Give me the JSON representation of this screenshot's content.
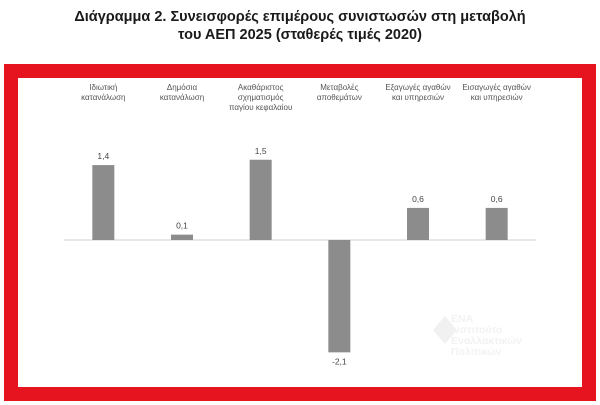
{
  "title_line1": "Διάγραμμα 2. Συνεισφορές επιμέρους συνιστωσών στη μεταβολή",
  "title_line2": "του ΑΕΠ 2025 (σταθερές τιμές 2020)",
  "watermark": {
    "line1": "ΕΝΑ",
    "line2": "Ινστιτούτο",
    "line3": "Εναλλακτικών",
    "line4": "Πολιτικών"
  },
  "colors": {
    "bar": "#8c8c8c",
    "frame": "#e5141e",
    "axis": "#d0d0d0"
  },
  "chart_data": {
    "type": "bar",
    "categories": [
      [
        "Ιδιωτική",
        "κατανάλωση"
      ],
      [
        "Δημόσια",
        "κατανάλωση"
      ],
      [
        "Ακαθάριστος",
        "σχηματισμός",
        "παγίου κεφαλαίου"
      ],
      [
        "Μεταβολές",
        "αποθεμάτων"
      ],
      [
        "Εξαγωγές αγαθών",
        "και υπηρεσιών"
      ],
      [
        "Εισαγωγές αγαθών",
        "και υπηρεσιών"
      ]
    ],
    "values": [
      1.4,
      0.1,
      1.5,
      -2.1,
      0.6,
      0.6
    ],
    "data_labels": [
      "1,4",
      "0,1",
      "1,5",
      "-2,1",
      "0,6",
      "0,6"
    ],
    "title": "",
    "xlabel": "",
    "ylabel": "",
    "ylim": [
      -2.1,
      1.5
    ],
    "grid": false,
    "category_labels_position": "top"
  }
}
